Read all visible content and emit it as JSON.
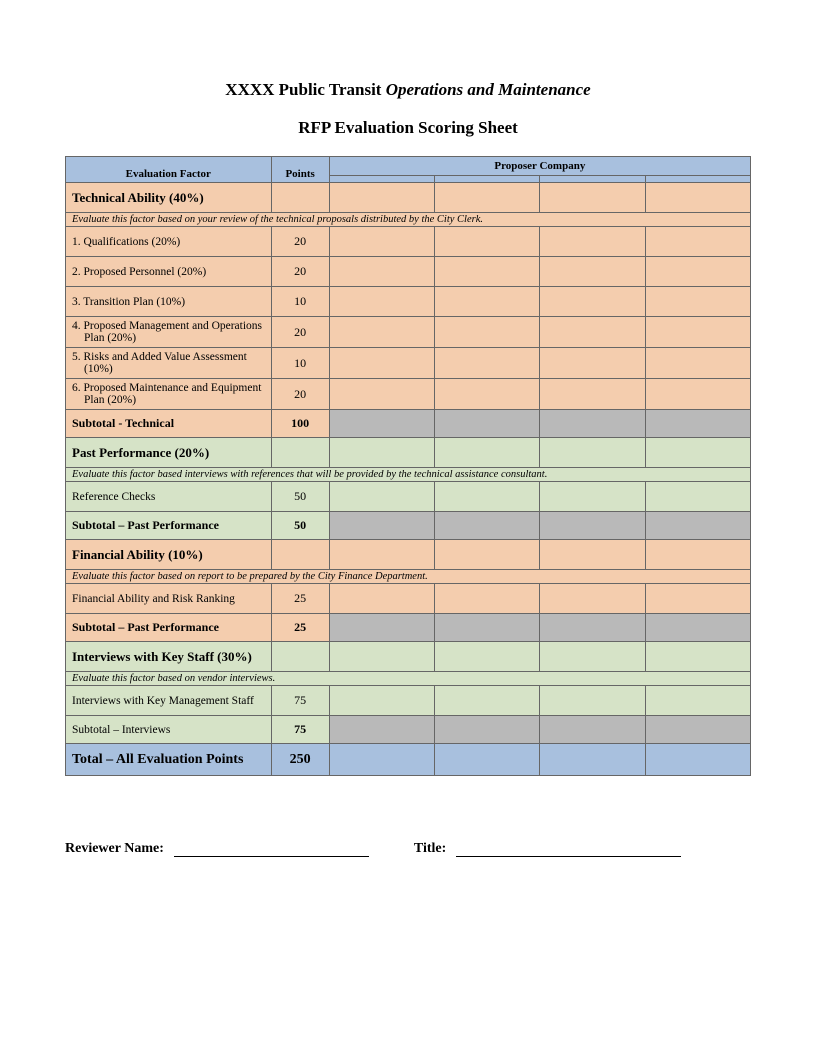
{
  "header": {
    "title_prefix": "XXXX Public Transit ",
    "title_italic": "Operations and Maintenance",
    "subtitle": "RFP Evaluation Scoring Sheet"
  },
  "colors": {
    "header_blue": "#a8c0de",
    "section_orange": "#f4cdae",
    "section_green": "#d6e3c7",
    "subtotal_gray": "#b9b9b9",
    "border": "#666666"
  },
  "table_headers": {
    "factor": "Evaluation Factor",
    "points": "Points",
    "proposer": "Proposer Company"
  },
  "sections": {
    "technical": {
      "title": "Technical Ability (40%)",
      "instruction": "Evaluate this factor based on your review of the technical proposals distributed by the City Clerk.",
      "items": [
        {
          "label": "1.    Qualifications (20%)",
          "points": 20
        },
        {
          "label": "2.    Proposed Personnel (20%)",
          "points": 20
        },
        {
          "label": "3.    Transition Plan (10%)",
          "points": 10
        },
        {
          "label": "4.    Proposed Management and Operations Plan (20%)",
          "points": 20
        },
        {
          "label": "5.    Risks and Added Value Assessment (10%)",
          "points": 10
        },
        {
          "label": "6.    Proposed Maintenance and Equipment Plan (20%)",
          "points": 20
        }
      ],
      "subtotal_label": "Subtotal - Technical",
      "subtotal_points": 100
    },
    "past": {
      "title": "Past Performance (20%)",
      "instruction": "Evaluate this factor based interviews with references that will be provided by the technical assistance consultant.",
      "items": [
        {
          "label": "Reference Checks",
          "points": 50
        }
      ],
      "subtotal_label": "Subtotal – Past Performance",
      "subtotal_points": 50
    },
    "financial": {
      "title": "Financial Ability (10%)",
      "instruction": "Evaluate this factor based on report to be prepared by the City Finance Department.",
      "items": [
        {
          "label": "Financial Ability and Risk Ranking",
          "points": 25
        }
      ],
      "subtotal_label": "Subtotal – Past Performance",
      "subtotal_points": 25
    },
    "interviews": {
      "title": "Interviews with Key Staff (30%)",
      "instruction": "Evaluate this factor based on vendor interviews.",
      "items": [
        {
          "label": "Interviews with Key Management Staff",
          "points": 75
        }
      ],
      "subtotal_label": "Subtotal – Interviews",
      "subtotal_points": 75
    }
  },
  "total": {
    "label": "Total – All Evaluation Points",
    "points": 250
  },
  "signature": {
    "reviewer_label": "Reviewer Name:",
    "title_label": "Title:"
  }
}
